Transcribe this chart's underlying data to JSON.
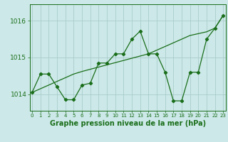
{
  "title": "Graphe pression niveau de la mer (hPa)",
  "x_hours": [
    0,
    1,
    2,
    3,
    4,
    5,
    6,
    7,
    8,
    9,
    10,
    11,
    12,
    13,
    14,
    15,
    16,
    17,
    18,
    19,
    20,
    21,
    22,
    23
  ],
  "y_detail": [
    1014.05,
    1014.55,
    1014.55,
    1014.2,
    1013.85,
    1013.85,
    1014.25,
    1014.3,
    1014.85,
    1014.85,
    1015.1,
    1015.1,
    1015.5,
    1015.72,
    1015.1,
    1015.1,
    1014.6,
    1013.82,
    1013.82,
    1014.6,
    1014.6,
    1015.5,
    1015.8,
    1016.15
  ],
  "y_trend": [
    1014.05,
    1014.15,
    1014.25,
    1014.35,
    1014.45,
    1014.55,
    1014.62,
    1014.68,
    1014.74,
    1014.8,
    1014.86,
    1014.92,
    1014.98,
    1015.04,
    1015.1,
    1015.2,
    1015.3,
    1015.4,
    1015.5,
    1015.6,
    1015.65,
    1015.7,
    1015.8,
    1016.15
  ],
  "line_color": "#1a6e1a",
  "bg_color": "#cce8e8",
  "grid_color": "#aacccc",
  "ylim": [
    1013.55,
    1016.45
  ],
  "yticks": [
    1014,
    1015,
    1016
  ],
  "xlim": [
    -0.3,
    23.3
  ]
}
